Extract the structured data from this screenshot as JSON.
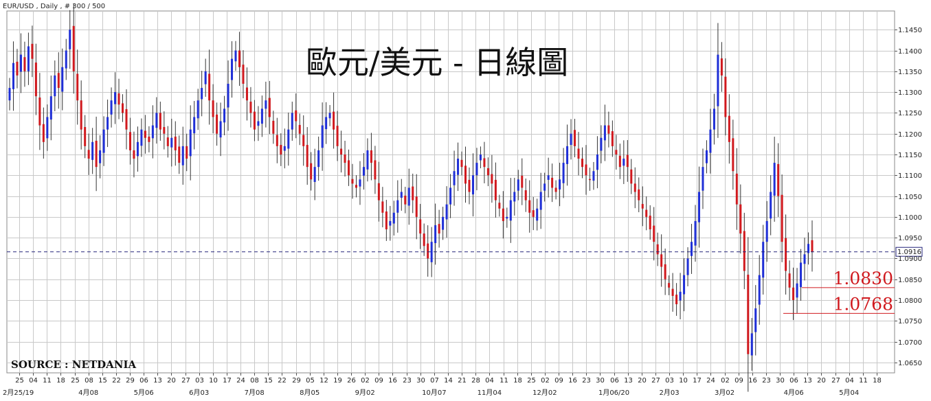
{
  "chart_data": {
    "type": "candlestick",
    "symbol_header": "EUR/USD , Daily , # 300 / 500",
    "title": "歐元/美元 - 日線圖",
    "source": "SOURCE : NETDANIA",
    "ylim": [
      1.0625,
      1.1495
    ],
    "y_ticks": [
      "1.1450",
      "1.1400",
      "1.1350",
      "1.1300",
      "1.1250",
      "1.1200",
      "1.1150",
      "1.1100",
      "1.1050",
      "1.1000",
      "1.0950",
      "1.0900",
      "1.0850",
      "1.0800",
      "1.0750",
      "1.0700",
      "1.0650"
    ],
    "x_day_ticks": [
      "25",
      "04",
      "11",
      "18",
      "25",
      "08",
      "15",
      "22",
      "29",
      "06",
      "13",
      "20",
      "27",
      "03",
      "10",
      "17",
      "24",
      "08",
      "15",
      "22",
      "29",
      "05",
      "12",
      "19",
      "26",
      "02",
      "09",
      "16",
      "23",
      "30",
      "07",
      "14",
      "21",
      "28",
      "04",
      "11",
      "18",
      "25",
      "02",
      "09",
      "16",
      "23",
      "30",
      "06",
      "13",
      "20",
      "27",
      "03",
      "10",
      "17",
      "24",
      "02",
      "09",
      "16",
      "23",
      "30",
      "06",
      "13",
      "20",
      "27",
      "04",
      "11",
      "18"
    ],
    "x_month_labels": [
      "2月25/19",
      "4月08",
      "5月06",
      "6月03",
      "7月08",
      "8月05",
      "9月02",
      "10月07",
      "11月04",
      "12月02",
      "1月06/20",
      "2月03",
      "3月02",
      "4月06",
      "5月04"
    ],
    "current_price": {
      "value": 1.0916,
      "label": "1.0916"
    },
    "support_levels": [
      {
        "value": 1.083,
        "label": "1.0830"
      },
      {
        "value": 1.0768,
        "label": "1.0768"
      }
    ],
    "colors": {
      "up": "#1f2fd6",
      "down": "#d0191e",
      "grid": "#c8c8c8",
      "current": "#22227a",
      "support": "#d0191e"
    },
    "closes": [
      1.131,
      1.137,
      1.134,
      1.139,
      1.135,
      1.141,
      1.138,
      1.129,
      1.122,
      1.118,
      1.124,
      1.129,
      1.134,
      1.131,
      1.136,
      1.14,
      1.145,
      1.135,
      1.128,
      1.121,
      1.117,
      1.114,
      1.118,
      1.112,
      1.116,
      1.121,
      1.124,
      1.128,
      1.13,
      1.127,
      1.125,
      1.121,
      1.116,
      1.114,
      1.118,
      1.121,
      1.119,
      1.118,
      1.122,
      1.125,
      1.121,
      1.12,
      1.117,
      1.119,
      1.116,
      1.113,
      1.117,
      1.114,
      1.121,
      1.124,
      1.128,
      1.131,
      1.135,
      1.128,
      1.124,
      1.12,
      1.123,
      1.126,
      1.132,
      1.138,
      1.14,
      1.136,
      1.132,
      1.128,
      1.125,
      1.121,
      1.123,
      1.126,
      1.128,
      1.124,
      1.12,
      1.117,
      1.115,
      1.117,
      1.121,
      1.125,
      1.123,
      1.12,
      1.117,
      1.112,
      1.109,
      1.112,
      1.116,
      1.122,
      1.124,
      1.125,
      1.121,
      1.117,
      1.115,
      1.113,
      1.11,
      1.108,
      1.107,
      1.109,
      1.112,
      1.116,
      1.113,
      1.109,
      1.104,
      1.101,
      1.097,
      1.099,
      1.101,
      1.104,
      1.106,
      1.103,
      1.107,
      1.104,
      1.1,
      1.096,
      1.093,
      1.09,
      1.094,
      1.098,
      1.096,
      1.1,
      1.103,
      1.107,
      1.111,
      1.114,
      1.112,
      1.108,
      1.106,
      1.11,
      1.113,
      1.115,
      1.112,
      1.11,
      1.108,
      1.104,
      1.102,
      1.099,
      1.1,
      1.104,
      1.106,
      1.109,
      1.107,
      1.104,
      1.101,
      1.1,
      1.102,
      1.106,
      1.108,
      1.11,
      1.107,
      1.106,
      1.109,
      1.113,
      1.117,
      1.12,
      1.117,
      1.114,
      1.112,
      1.11,
      1.109,
      1.111,
      1.115,
      1.119,
      1.122,
      1.12,
      1.117,
      1.115,
      1.112,
      1.114,
      1.112,
      1.108,
      1.106,
      1.104,
      1.102,
      1.1,
      1.097,
      1.094,
      1.091,
      1.088,
      1.085,
      1.083,
      1.081,
      1.079,
      1.082,
      1.086,
      1.09,
      1.094,
      1.099,
      1.106,
      1.112,
      1.116,
      1.121,
      1.126,
      1.139,
      1.134,
      1.124,
      1.118,
      1.111,
      1.103,
      1.096,
      1.087,
      1.067,
      1.072,
      1.078,
      1.086,
      1.094,
      1.099,
      1.106,
      1.113,
      1.105,
      1.094,
      1.087,
      1.083,
      1.08,
      1.084,
      1.089,
      1.091,
      1.0935,
      1.0916
    ]
  }
}
